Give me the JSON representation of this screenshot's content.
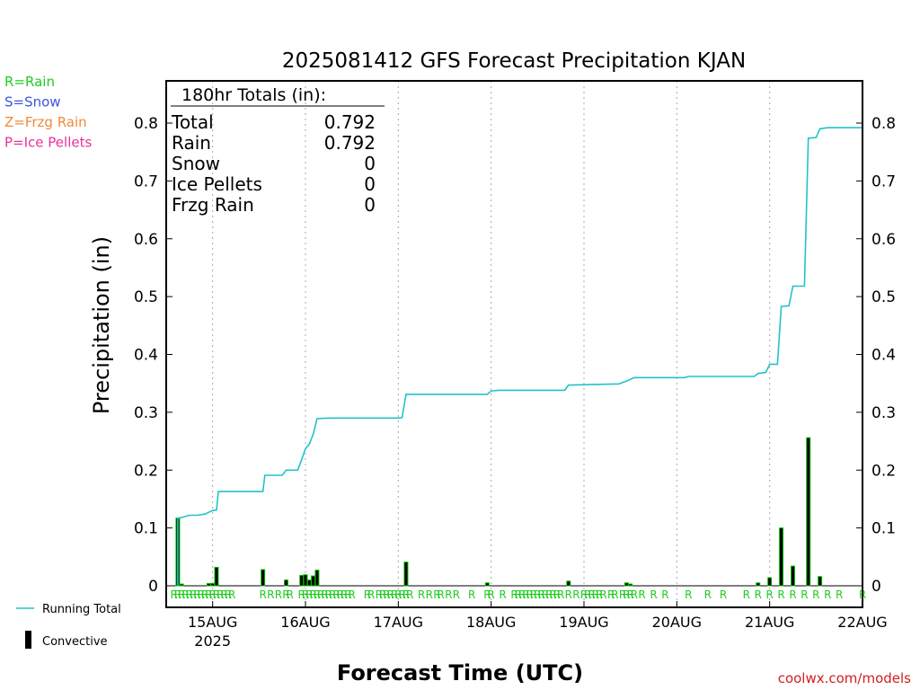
{
  "chart_data": {
    "type": "bar",
    "title": "2025081412 GFS Forecast Precipitation KJAN",
    "xlabel": "Forecast Time (UTC)",
    "ylabel": "Precipitation (in)",
    "ylim": [
      0,
      0.88
    ],
    "xlim": [
      "2025-08-14T12:00",
      "2025-08-22T00:00"
    ],
    "yticks": [
      0,
      0.1,
      0.2,
      0.3,
      0.4,
      0.5,
      0.6,
      0.7,
      0.8
    ],
    "ytick_labels": [
      "0",
      "0.1",
      "0.2",
      "0.3",
      "0.4",
      "0.5",
      "0.6",
      "0.7",
      "0.8"
    ],
    "xticks": [
      {
        "date": "2025-08-15T00:00",
        "label": "15AUG",
        "sublabel": "2025"
      },
      {
        "date": "2025-08-16T00:00",
        "label": "16AUG",
        "sublabel": ""
      },
      {
        "date": "2025-08-17T00:00",
        "label": "17AUG",
        "sublabel": ""
      },
      {
        "date": "2025-08-18T00:00",
        "label": "18AUG",
        "sublabel": ""
      },
      {
        "date": "2025-08-19T00:00",
        "label": "19AUG",
        "sublabel": ""
      },
      {
        "date": "2025-08-20T00:00",
        "label": "20AUG",
        "sublabel": ""
      },
      {
        "date": "2025-08-21T00:00",
        "label": "21AUG",
        "sublabel": ""
      },
      {
        "date": "2025-08-22T00:00",
        "label": "22AUG",
        "sublabel": ""
      }
    ],
    "grid": "vertical dotted at each day",
    "series": [
      {
        "name": "Running Total",
        "kind": "line",
        "color": "#22c3c9",
        "points": [
          [
            "2025-08-14T15:00",
            0
          ],
          [
            "2025-08-14T15:00",
            0.117
          ],
          [
            "2025-08-14T16:00",
            0.118
          ],
          [
            "2025-08-14T18:00",
            0.122
          ],
          [
            "2025-08-14T20:00",
            0.122
          ],
          [
            "2025-08-14T22:00",
            0.124
          ],
          [
            "2025-08-14T23:00",
            0.127
          ],
          [
            "2025-08-15T00:00",
            0.13
          ],
          [
            "2025-08-15T01:00",
            0.131
          ],
          [
            "2025-08-15T01:30",
            0.163
          ],
          [
            "2025-08-15T05:00",
            0.163
          ],
          [
            "2025-08-15T13:00",
            0.163
          ],
          [
            "2025-08-15T13:30",
            0.191
          ],
          [
            "2025-08-15T18:00",
            0.191
          ],
          [
            "2025-08-15T19:00",
            0.2
          ],
          [
            "2025-08-15T22:00",
            0.2
          ],
          [
            "2025-08-15T23:00",
            0.218
          ],
          [
            "2025-08-16T00:00",
            0.237
          ],
          [
            "2025-08-16T01:00",
            0.245
          ],
          [
            "2025-08-16T02:00",
            0.262
          ],
          [
            "2025-08-16T03:00",
            0.289
          ],
          [
            "2025-08-16T06:00",
            0.29
          ],
          [
            "2025-08-17T00:00",
            0.29
          ],
          [
            "2025-08-17T01:00",
            0.291
          ],
          [
            "2025-08-17T02:00",
            0.331
          ],
          [
            "2025-08-17T12:00",
            0.331
          ],
          [
            "2025-08-17T23:00",
            0.331
          ],
          [
            "2025-08-18T00:00",
            0.337
          ],
          [
            "2025-08-18T02:00",
            0.338
          ],
          [
            "2025-08-18T19:00",
            0.338
          ],
          [
            "2025-08-18T20:00",
            0.347
          ],
          [
            "2025-08-19T09:00",
            0.349
          ],
          [
            "2025-08-19T11:00",
            0.354
          ],
          [
            "2025-08-19T13:00",
            0.36
          ],
          [
            "2025-08-20T02:00",
            0.36
          ],
          [
            "2025-08-20T03:00",
            0.362
          ],
          [
            "2025-08-20T20:00",
            0.362
          ],
          [
            "2025-08-20T21:00",
            0.367
          ],
          [
            "2025-08-20T23:00",
            0.369
          ],
          [
            "2025-08-21T00:00",
            0.383
          ],
          [
            "2025-08-21T02:00",
            0.383
          ],
          [
            "2025-08-21T03:00",
            0.483
          ],
          [
            "2025-08-21T05:00",
            0.484
          ],
          [
            "2025-08-21T06:00",
            0.518
          ],
          [
            "2025-08-21T09:00",
            0.518
          ],
          [
            "2025-08-21T10:00",
            0.774
          ],
          [
            "2025-08-21T12:00",
            0.775
          ],
          [
            "2025-08-21T13:00",
            0.79
          ],
          [
            "2025-08-21T15:00",
            0.792
          ],
          [
            "2025-08-22T00:00",
            0.792
          ]
        ]
      },
      {
        "name": "Convective",
        "kind": "bar",
        "color": "#000000",
        "border_color": "#00c000",
        "bars": [
          [
            "2025-08-14T15:00",
            0.117
          ],
          [
            "2025-08-14T16:00",
            0.003
          ],
          [
            "2025-08-14T23:00",
            0.004
          ],
          [
            "2025-08-15T00:00",
            0.004
          ],
          [
            "2025-08-15T01:00",
            0.032
          ],
          [
            "2025-08-15T13:00",
            0.028
          ],
          [
            "2025-08-15T19:00",
            0.01
          ],
          [
            "2025-08-15T23:00",
            0.018
          ],
          [
            "2025-08-16T00:00",
            0.019
          ],
          [
            "2025-08-16T01:00",
            0.01
          ],
          [
            "2025-08-16T02:00",
            0.017
          ],
          [
            "2025-08-16T03:00",
            0.027
          ],
          [
            "2025-08-17T02:00",
            0.041
          ],
          [
            "2025-08-17T23:00",
            0.005
          ],
          [
            "2025-08-18T20:00",
            0.008
          ],
          [
            "2025-08-19T11:00",
            0.005
          ],
          [
            "2025-08-19T12:00",
            0.003
          ],
          [
            "2025-08-20T21:00",
            0.005
          ],
          [
            "2025-08-21T00:00",
            0.014
          ],
          [
            "2025-08-21T03:00",
            0.1
          ],
          [
            "2025-08-21T06:00",
            0.034
          ],
          [
            "2025-08-21T10:00",
            0.256
          ],
          [
            "2025-08-21T13:00",
            0.016
          ]
        ]
      }
    ],
    "ptype_markers": {
      "color": "#22cc22",
      "letter": "R",
      "times": [
        "2025-08-14T14:00",
        "2025-08-14T15:00",
        "2025-08-14T16:00",
        "2025-08-14T17:00",
        "2025-08-14T18:00",
        "2025-08-14T19:00",
        "2025-08-14T20:00",
        "2025-08-14T21:00",
        "2025-08-14T22:00",
        "2025-08-14T23:00",
        "2025-08-15T00:00",
        "2025-08-15T01:00",
        "2025-08-15T02:00",
        "2025-08-15T03:00",
        "2025-08-15T04:00",
        "2025-08-15T05:00",
        "2025-08-15T13:00",
        "2025-08-15T15:00",
        "2025-08-15T17:00",
        "2025-08-15T19:00",
        "2025-08-15T20:00",
        "2025-08-15T23:00",
        "2025-08-16T00:00",
        "2025-08-16T01:00",
        "2025-08-16T02:00",
        "2025-08-16T03:00",
        "2025-08-16T04:00",
        "2025-08-16T05:00",
        "2025-08-16T06:00",
        "2025-08-16T07:00",
        "2025-08-16T08:00",
        "2025-08-16T09:00",
        "2025-08-16T10:00",
        "2025-08-16T11:00",
        "2025-08-16T12:00",
        "2025-08-16T16:00",
        "2025-08-16T17:00",
        "2025-08-16T19:00",
        "2025-08-16T20:00",
        "2025-08-16T21:00",
        "2025-08-16T22:00",
        "2025-08-16T23:00",
        "2025-08-17T00:00",
        "2025-08-17T01:00",
        "2025-08-17T02:00",
        "2025-08-17T03:00",
        "2025-08-17T06:00",
        "2025-08-17T08:00",
        "2025-08-17T10:00",
        "2025-08-17T11:00",
        "2025-08-17T13:00",
        "2025-08-17T15:00",
        "2025-08-17T19:00",
        "2025-08-17T23:00",
        "2025-08-18T00:00",
        "2025-08-18T03:00",
        "2025-08-18T06:00",
        "2025-08-18T07:00",
        "2025-08-18T08:00",
        "2025-08-18T09:00",
        "2025-08-18T10:00",
        "2025-08-18T11:00",
        "2025-08-18T12:00",
        "2025-08-18T13:00",
        "2025-08-18T14:00",
        "2025-08-18T15:00",
        "2025-08-18T16:00",
        "2025-08-18T17:00",
        "2025-08-18T18:00",
        "2025-08-18T20:00",
        "2025-08-18T22:00",
        "2025-08-19T00:00",
        "2025-08-19T01:00",
        "2025-08-19T02:00",
        "2025-08-19T03:00",
        "2025-08-19T04:00",
        "2025-08-19T05:00",
        "2025-08-19T07:00",
        "2025-08-19T08:00",
        "2025-08-19T10:00",
        "2025-08-19T11:00",
        "2025-08-19T12:00",
        "2025-08-19T13:00",
        "2025-08-19T15:00",
        "2025-08-19T18:00",
        "2025-08-19T21:00",
        "2025-08-20T03:00",
        "2025-08-20T08:00",
        "2025-08-20T12:00",
        "2025-08-20T18:00",
        "2025-08-20T21:00",
        "2025-08-21T00:00",
        "2025-08-21T03:00",
        "2025-08-21T06:00",
        "2025-08-21T09:00",
        "2025-08-21T12:00",
        "2025-08-21T15:00",
        "2025-08-21T18:00",
        "2025-08-22T00:00"
      ]
    },
    "totals_box": {
      "heading": "180hr Totals (in):",
      "rows": [
        {
          "label": "Total",
          "value": "0.792"
        },
        {
          "label": "Rain",
          "value": "0.792"
        },
        {
          "label": "Snow",
          "value": "0"
        },
        {
          "label": "Ice Pellets",
          "value": "0"
        },
        {
          "label": "Frzg Rain",
          "value": "0"
        }
      ]
    },
    "ptype_key": [
      {
        "text": "R=Rain",
        "color": "#22cc22"
      },
      {
        "text": "S=Snow",
        "color": "#3c55e0"
      },
      {
        "text": "Z=Frzg Rain",
        "color": "#f08a3c"
      },
      {
        "text": "P=Ice Pellets",
        "color": "#e8329a"
      }
    ],
    "legend": [
      {
        "label": "Running Total",
        "kind": "line",
        "color": "#22c3c9"
      },
      {
        "label": "Convective",
        "kind": "bar",
        "color": "#000000"
      }
    ],
    "credit": "coolwx.com/models"
  }
}
